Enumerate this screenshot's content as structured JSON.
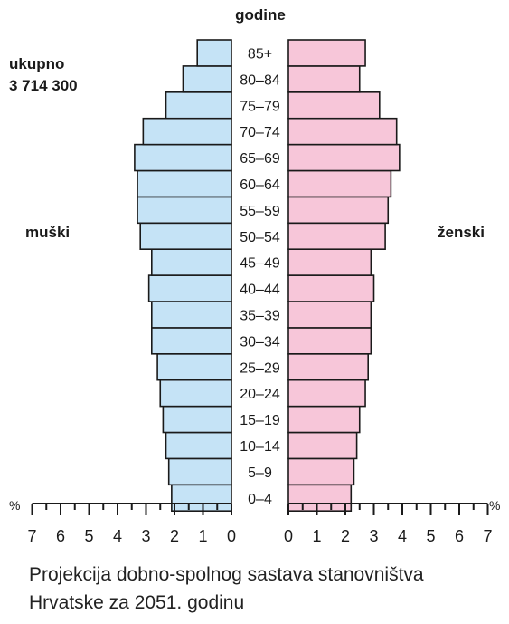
{
  "chart_data": {
    "type": "bar",
    "orientation": "horizontal",
    "layout": "population-pyramid",
    "age_axis_label": "godine",
    "total_label": "ukupno",
    "total_value": "3 714 300",
    "unit": "%",
    "categories": [
      "0–4",
      "5–9",
      "10–14",
      "15–19",
      "20–24",
      "25–29",
      "30–34",
      "35–39",
      "40–44",
      "45–49",
      "50–54",
      "55–59",
      "60–64",
      "65–69",
      "70–74",
      "75–79",
      "80–84",
      "85+"
    ],
    "series": [
      {
        "name": "muški",
        "color": "#c5e3f6",
        "values": [
          2.1,
          2.2,
          2.3,
          2.4,
          2.5,
          2.6,
          2.8,
          2.8,
          2.9,
          2.8,
          3.2,
          3.3,
          3.3,
          3.4,
          3.1,
          2.3,
          1.7,
          1.2
        ]
      },
      {
        "name": "ženski",
        "color": "#f7c6d9",
        "values": [
          2.2,
          2.3,
          2.4,
          2.5,
          2.7,
          2.8,
          2.9,
          2.9,
          3.0,
          2.9,
          3.4,
          3.5,
          3.6,
          3.9,
          3.8,
          3.2,
          2.5,
          2.7
        ]
      }
    ],
    "xlim": [
      0,
      7
    ],
    "xticks": [
      "0",
      "1",
      "2",
      "3",
      "4",
      "5",
      "6",
      "7"
    ],
    "caption_line1": "Projekcija dobno-spolnog sastava stanovništva",
    "caption_line2": "Hrvatske za 2051. godinu"
  }
}
